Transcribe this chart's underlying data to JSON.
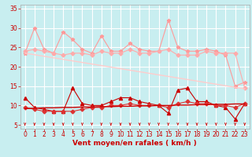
{
  "background_color": "#c8eef0",
  "grid_color": "#ffffff",
  "xlabel": "Vent moyen/en rafales ( km/h )",
  "xlabel_color": "#cc0000",
  "xlabel_fontsize": 6.5,
  "tick_color": "#cc0000",
  "tick_fontsize": 5.5,
  "ylim": [
    4,
    36
  ],
  "yticks": [
    5,
    10,
    15,
    20,
    25,
    30,
    35
  ],
  "xlim": [
    -0.5,
    23.5
  ],
  "xticks": [
    0,
    1,
    2,
    3,
    4,
    5,
    6,
    7,
    8,
    9,
    10,
    11,
    12,
    13,
    14,
    15,
    16,
    17,
    18,
    19,
    20,
    21,
    22,
    23
  ],
  "series": [
    {
      "name": "rafales_max",
      "color": "#ff9999",
      "linewidth": 0.8,
      "marker": "*",
      "markersize": 3.5,
      "y": [
        23.5,
        30.0,
        24.5,
        23.5,
        29.0,
        27.0,
        24.5,
        23.5,
        28.0,
        24.0,
        24.0,
        26.0,
        24.5,
        24.0,
        24.0,
        32.0,
        25.0,
        24.0,
        24.0,
        24.5,
        24.0,
        23.0,
        15.0,
        16.0
      ]
    },
    {
      "name": "rafales_mean",
      "color": "#ffaaaa",
      "linewidth": 0.8,
      "marker": "D",
      "markersize": 2.5,
      "y": [
        24.0,
        24.5,
        24.0,
        23.5,
        23.0,
        23.5,
        23.5,
        23.0,
        24.0,
        23.5,
        23.5,
        24.5,
        23.5,
        23.5,
        24.0,
        24.5,
        23.0,
        23.0,
        23.0,
        24.0,
        23.5,
        23.5,
        23.5,
        14.5
      ]
    },
    {
      "name": "trend_rafales",
      "color": "#ffcccc",
      "linewidth": 1.0,
      "marker": null,
      "markersize": 0,
      "y": [
        23.5,
        23.1,
        22.7,
        22.3,
        21.9,
        21.5,
        21.1,
        20.7,
        20.3,
        19.9,
        19.5,
        19.1,
        18.7,
        18.3,
        17.9,
        17.5,
        17.1,
        16.7,
        16.3,
        15.9,
        15.5,
        15.1,
        14.7,
        14.3
      ]
    },
    {
      "name": "vent_max",
      "color": "#cc0000",
      "linewidth": 0.8,
      "marker": "^",
      "markersize": 3,
      "y": [
        12.0,
        9.5,
        9.0,
        8.5,
        8.5,
        14.5,
        10.5,
        10.0,
        10.0,
        11.0,
        12.0,
        12.0,
        11.0,
        10.5,
        10.0,
        8.0,
        14.0,
        14.5,
        11.0,
        11.0,
        10.0,
        9.5,
        6.5,
        10.5
      ]
    },
    {
      "name": "vent_mean",
      "color": "#dd3333",
      "linewidth": 0.8,
      "marker": "D",
      "markersize": 2.5,
      "y": [
        9.5,
        9.0,
        8.5,
        8.5,
        8.5,
        8.5,
        9.0,
        9.5,
        9.5,
        10.0,
        10.0,
        10.5,
        10.0,
        10.0,
        10.0,
        9.5,
        10.5,
        11.0,
        10.5,
        10.5,
        10.0,
        10.0,
        9.5,
        10.5
      ]
    },
    {
      "name": "trend_vent",
      "color": "#cc0000",
      "linewidth": 1.0,
      "marker": null,
      "markersize": 0,
      "y": [
        9.2,
        9.3,
        9.4,
        9.4,
        9.5,
        9.5,
        9.6,
        9.6,
        9.7,
        9.7,
        9.8,
        9.8,
        9.9,
        9.9,
        10.0,
        10.0,
        10.1,
        10.1,
        10.2,
        10.2,
        10.3,
        10.3,
        10.4,
        10.4
      ]
    }
  ]
}
